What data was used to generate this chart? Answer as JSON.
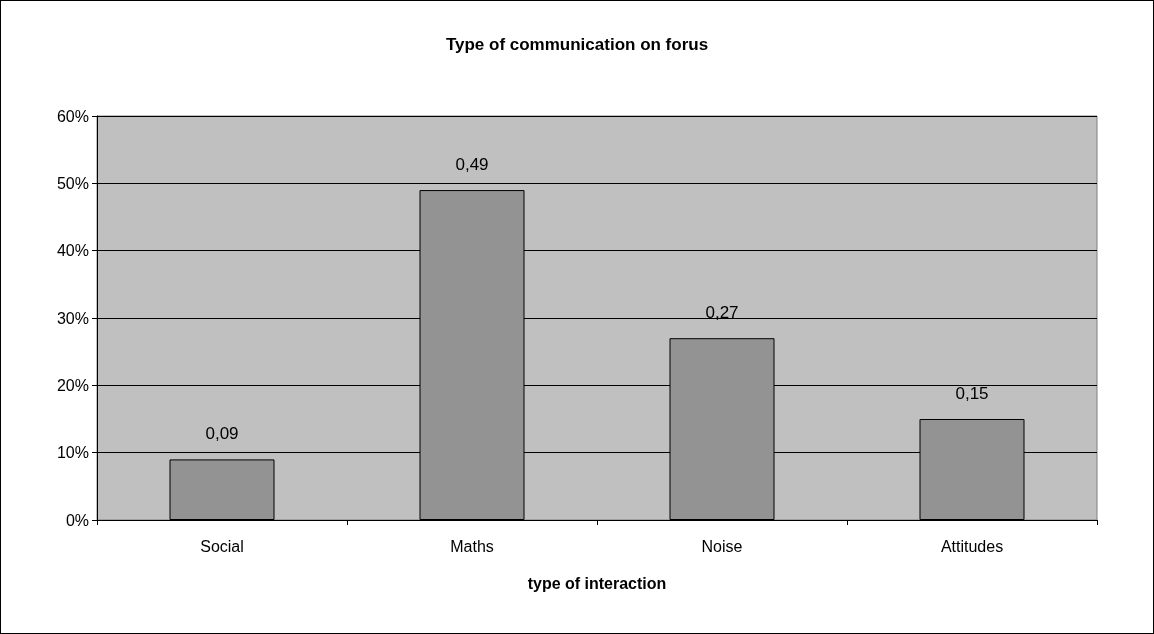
{
  "chart_data": {
    "type": "bar",
    "title": "Type of communication on forus",
    "xlabel": "type of interaction",
    "categories": [
      "Social",
      "Maths",
      "Noise",
      "Attitudes"
    ],
    "values": [
      0.09,
      0.49,
      0.27,
      0.15
    ],
    "color": "#939393",
    "value_labels": [
      "0,09",
      "0,49",
      "0,27",
      "0,15"
    ],
    "ylim": [
      0,
      0.6
    ],
    "yticks": [
      {
        "value": 0,
        "label": "0%"
      },
      {
        "value": 0.1,
        "label": "10%"
      },
      {
        "value": 0.2,
        "label": "20%"
      },
      {
        "value": 0.3,
        "label": "30%"
      },
      {
        "value": 0.4,
        "label": "40%"
      },
      {
        "value": 0.5,
        "label": "50%"
      },
      {
        "value": 0.6,
        "label": "60%"
      }
    ],
    "grid": "y"
  }
}
